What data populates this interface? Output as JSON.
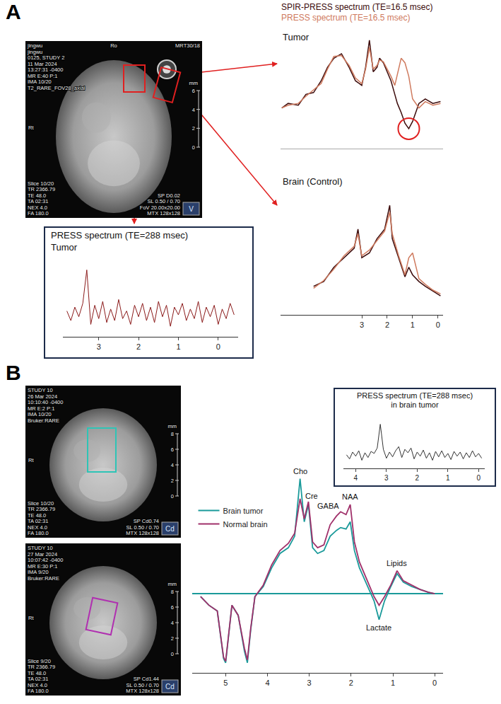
{
  "panel_labels": [
    "A",
    "B"
  ],
  "images": [
    {
      "overlay": {
        "top_left": [
          "jingwu",
          "jingwu",
          "0125, STUDY 2",
          "11 Mar 2024",
          "13:27:31 -0400",
          "MR E:40 P:1",
          "IMA 10/20",
          "T2_RARE_FOV28_axial"
        ],
        "top_center": "Ro",
        "top_right": "MRT30/18",
        "left": "Rt",
        "ruler": {
          "unit": "mm",
          "ticks": [
            6,
            4,
            2,
            0
          ]
        },
        "bottom_left": [
          "Slice 10/20",
          "TR 2366.79",
          "TE 48.0",
          "TA 02:31",
          "NEX 4.0",
          "FA 180.0"
        ],
        "bottom_right": [
          "SP D0.02",
          "SL 0.50 / 0.70",
          "FoV 20.00x20.00",
          "MTX 128x128"
        ],
        "icon": "V"
      },
      "roi": {
        "color": "#e02020"
      }
    },
    {
      "overlay": {
        "top_left": [
          "STUDY 10",
          "26 Mar 2024",
          "10:10:40 -0400",
          "MR E:2 P:1",
          "IMA 10/20",
          "Bruker:RARE"
        ],
        "left": "Rt",
        "ruler": {
          "unit": "mm",
          "ticks": [
            8,
            6,
            4,
            2,
            0
          ]
        },
        "bottom_left": [
          "Slice 10/20",
          "TR 2366.79",
          "TE 48.0",
          "TA 02:31",
          "NEX 4.0",
          "FA 180.0"
        ],
        "bottom_right": [
          "SP Cd0.74",
          "SL 0.50 / 0.70",
          "MTX 128x128"
        ],
        "icon": "Cd"
      },
      "roi": {
        "color": "#2ec4b6"
      }
    },
    {
      "overlay": {
        "top_left": [
          "STUDY 10",
          "27 Mar 2024",
          "10:07:42 -0400",
          "MR E:30 P:1",
          "IMA 9/20",
          "Bruker:RARE"
        ],
        "left": "Rt",
        "ruler": {
          "unit": "mm",
          "ticks": [
            8,
            6,
            4,
            2,
            0
          ]
        },
        "bottom_left": [
          "Slice 9/20",
          "TR 2366.79",
          "TE 48.0",
          "TA 02:31",
          "NEX 4.0",
          "FA 180.0"
        ],
        "bottom_right": [
          "SP Cd1.44",
          "SL 0.50 / 0.70",
          "MTX 128x128"
        ],
        "icon": "Cd"
      },
      "roi": {
        "color": "#b030b0"
      }
    }
  ],
  "chart_data": [
    {
      "type": "line",
      "title": "Tumor",
      "legend": "top",
      "tick_labels": false,
      "grid": false,
      "x": [
        6.15,
        5.9,
        5.5,
        5.2,
        4.9,
        4.6,
        4.35,
        4.1,
        3.8,
        3.5,
        3.25,
        3.0,
        2.85,
        2.7,
        2.55,
        2.4,
        2.3,
        2.15,
        2.0,
        1.85,
        1.7,
        1.6,
        1.45,
        1.3,
        1.15,
        1.0,
        0.75,
        0.5,
        0.2,
        -0.1
      ],
      "series": [
        {
          "name": "SPIR-PRESS spectrum (TE=16.5 msec)",
          "color": "#3b0a0a",
          "values": [
            45,
            50,
            48,
            60,
            62,
            75,
            90,
            100,
            105,
            90,
            75,
            70,
            90,
            120,
            85,
            90,
            100,
            95,
            85,
            75,
            60,
            50,
            40,
            28,
            22,
            30,
            50,
            55,
            50,
            52
          ]
        },
        {
          "name": "PRESS spectrum (TE=16.5 msec)",
          "color": "#cf7a5e",
          "values": [
            45,
            48,
            50,
            58,
            65,
            72,
            88,
            102,
            103,
            92,
            78,
            72,
            88,
            112,
            88,
            92,
            98,
            96,
            88,
            80,
            70,
            82,
            100,
            95,
            80,
            55,
            45,
            52,
            48,
            50
          ]
        }
      ],
      "xlim": [
        6.2,
        -0.2
      ],
      "ylim": [
        0,
        130
      ]
    },
    {
      "type": "line",
      "title": "Brain (Control)",
      "tick_labels": "x",
      "grid": false,
      "x": [
        4.9,
        4.5,
        4.1,
        3.7,
        3.3,
        3.15,
        3.0,
        2.7,
        2.4,
        2.1,
        1.9,
        1.8,
        1.55,
        1.3,
        1.15,
        1.0,
        0.75,
        0.5,
        0.2,
        -0.1
      ],
      "series": [
        {
          "color": "#3b0a0a",
          "values": [
            50,
            55,
            70,
            80,
            90,
            110,
            80,
            85,
            100,
            110,
            135,
            100,
            80,
            60,
            70,
            62,
            55,
            50,
            45,
            40
          ]
        },
        {
          "color": "#cf7a5e",
          "values": [
            48,
            56,
            68,
            82,
            92,
            105,
            82,
            88,
            98,
            108,
            128,
            105,
            82,
            62,
            80,
            85,
            58,
            52,
            46,
            42
          ]
        }
      ],
      "xlim": [
        6.2,
        -0.2
      ],
      "xticks": [
        3,
        2,
        1,
        0
      ],
      "ylim": [
        20,
        150
      ]
    },
    {
      "type": "line",
      "title": "PRESS spectrum (TE=288 msec)",
      "subtitle": "Tumor",
      "tick_labels": "x",
      "grid": false,
      "x": [
        3.8,
        3.7,
        3.6,
        3.5,
        3.4,
        3.3,
        3.2,
        3.1,
        3.0,
        2.9,
        2.8,
        2.7,
        2.6,
        2.5,
        2.4,
        2.3,
        2.2,
        2.1,
        2.0,
        1.9,
        1.8,
        1.7,
        1.6,
        1.5,
        1.4,
        1.3,
        1.2,
        1.1,
        1.0,
        0.9,
        0.8,
        0.7,
        0.6,
        0.5,
        0.4,
        0.3,
        0.2,
        0.1,
        0.0,
        -0.1,
        -0.2,
        -0.3,
        -0.4
      ],
      "series": [
        {
          "color": "#8b1a1a",
          "values": [
            2,
            -8,
            6,
            -4,
            10,
            45,
            -12,
            8,
            -6,
            12,
            -10,
            4,
            -8,
            14,
            -6,
            2,
            -12,
            8,
            -4,
            10,
            -8,
            6,
            -10,
            12,
            -4,
            8,
            -14,
            6,
            -2,
            10,
            -8,
            4,
            -6,
            12,
            -10,
            6,
            -4,
            8,
            -12,
            4,
            -6,
            10,
            -2
          ]
        }
      ],
      "xlim": [
        3.9,
        -0.5
      ],
      "xticks": [
        3,
        2,
        1,
        0
      ],
      "ylim": [
        -25,
        55
      ]
    },
    {
      "type": "line",
      "legend": "left",
      "tick_labels": "x",
      "grid": false,
      "x": [
        5.6,
        5.4,
        5.2,
        5.05,
        5.0,
        4.95,
        4.85,
        4.7,
        4.55,
        4.48,
        4.4,
        4.3,
        4.1,
        3.9,
        3.7,
        3.5,
        3.35,
        3.22,
        3.12,
        3.02,
        2.92,
        2.8,
        2.65,
        2.5,
        2.35,
        2.25,
        2.12,
        2.02,
        1.92,
        1.8,
        1.6,
        1.45,
        1.33,
        1.2,
        1.05,
        0.9,
        0.75,
        0.55,
        0.35,
        0.15,
        0.0
      ],
      "series": [
        {
          "name": "Brain tumor",
          "color": "#1a9a9a",
          "values": [
            -2,
            -8,
            -12,
            -45,
            -48,
            -35,
            -8,
            -15,
            -40,
            -48,
            -25,
            -2,
            5,
            18,
            28,
            32,
            40,
            80,
            50,
            62,
            32,
            28,
            30,
            40,
            44,
            46,
            45,
            50,
            30,
            18,
            5,
            -5,
            -18,
            -5,
            5,
            14,
            8,
            5,
            3,
            1,
            0
          ]
        },
        {
          "name": "Normal brain",
          "color": "#a0306a",
          "values": [
            -2,
            -8,
            -12,
            -44,
            -47,
            -34,
            -8,
            -15,
            -38,
            -46,
            -24,
            -2,
            6,
            20,
            30,
            35,
            42,
            66,
            52,
            64,
            36,
            32,
            34,
            48,
            54,
            57,
            55,
            62,
            36,
            22,
            8,
            -2,
            -8,
            -2,
            6,
            16,
            9,
            6,
            3,
            1,
            0
          ]
        }
      ],
      "annotations": [
        {
          "text": "Cho",
          "x": 3.22
        },
        {
          "text": "Cre",
          "x": 2.95
        },
        {
          "text": "GABA",
          "x": 2.55
        },
        {
          "text": "NAA",
          "x": 2.02
        },
        {
          "text": "Lipids",
          "x": 0.9
        },
        {
          "text": "Lactate",
          "x": 1.33
        }
      ],
      "xlim": [
        5.8,
        -0.2
      ],
      "xticks": [
        5,
        4,
        3,
        2,
        1,
        0
      ],
      "ylim": [
        -55,
        95
      ]
    },
    {
      "type": "line",
      "title": "PRESS spectrum (TE=288 msec) in brain tumor",
      "tick_labels": "x",
      "grid": false,
      "x": [
        4.3,
        4.2,
        4.1,
        4.0,
        3.9,
        3.8,
        3.7,
        3.6,
        3.5,
        3.4,
        3.3,
        3.2,
        3.1,
        3.0,
        2.9,
        2.8,
        2.7,
        2.6,
        2.5,
        2.4,
        2.3,
        2.2,
        2.1,
        2.0,
        1.9,
        1.8,
        1.7,
        1.6,
        1.5,
        1.4,
        1.3,
        1.2,
        1.1,
        1.0,
        0.9,
        0.8,
        0.7,
        0.6,
        0.5,
        0.4,
        0.3,
        0.2,
        0.1,
        0.0,
        -0.1
      ],
      "series": [
        {
          "color": "#333333",
          "values": [
            0,
            -6,
            4,
            -2,
            6,
            -8,
            3,
            -4,
            5,
            2,
            10,
            45,
            8,
            -5,
            4,
            -3,
            6,
            12,
            -4,
            8,
            3,
            10,
            -6,
            4,
            -2,
            7,
            -5,
            3,
            -8,
            5,
            -3,
            6,
            -4,
            2,
            -7,
            5,
            -2,
            4,
            -6,
            3,
            -4,
            6,
            -3,
            2,
            -5
          ]
        }
      ],
      "xlim": [
        4.4,
        -0.2
      ],
      "xticks": [
        4,
        3,
        2,
        1,
        0
      ],
      "ylim": [
        -20,
        55
      ]
    }
  ]
}
